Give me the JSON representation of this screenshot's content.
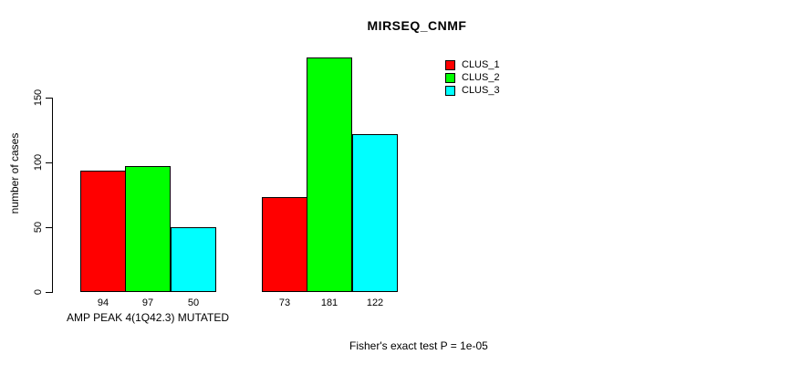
{
  "chart_data": {
    "type": "bar",
    "title": "MIRSEQ_CNMF",
    "ylabel": "number of cases",
    "xlabel": "AMP PEAK 4(1Q42.3) MUTATED",
    "footnote": "Fisher's exact test P = 1e-05",
    "categories": [
      "AMP PEAK 4(1Q42.3) MUTATED",
      ""
    ],
    "series": [
      {
        "name": "CLUS_1",
        "color": "#ff0000",
        "values": [
          94,
          73
        ]
      },
      {
        "name": "CLUS_2",
        "color": "#00ff00",
        "values": [
          97,
          181
        ]
      },
      {
        "name": "CLUS_3",
        "color": "#00ffff",
        "values": [
          50,
          122
        ]
      }
    ],
    "bar_value_labels": [
      [
        94,
        97,
        50
      ],
      [
        73,
        181,
        122
      ]
    ],
    "yticks": [
      0,
      50,
      100,
      150
    ],
    "ylim": [
      0,
      185
    ],
    "grid": false,
    "legend_position": "top-right",
    "axis_color": "#000000",
    "background_color": "#ffffff"
  }
}
